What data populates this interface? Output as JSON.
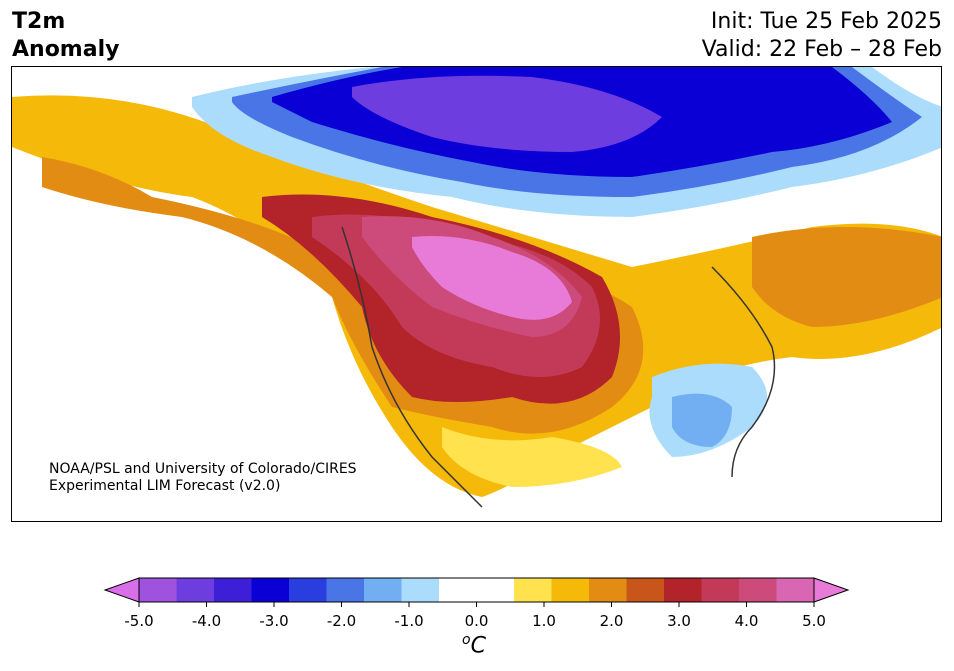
{
  "header": {
    "title_line1": "T2m",
    "title_line2": "Anomaly",
    "init": "Init: Tue 25 Feb 2025",
    "valid": "Valid: 22 Feb – 28 Feb"
  },
  "credit": {
    "line1": "NOAA/PSL and University of Colorado/CIRES",
    "line2": "Experimental LIM Forecast (v2.0)"
  },
  "colorbar": {
    "unit_sup": "o",
    "unit": "C",
    "ticks": [
      "-5.0",
      "-4.0",
      "-3.0",
      "-2.0",
      "-1.0",
      "0.0",
      "1.0",
      "2.0",
      "3.0",
      "4.0",
      "5.0"
    ],
    "colors": {
      "under": "#d86fe8",
      "over": "#e87ad8",
      "bins": [
        "#9f52de",
        "#6e3de0",
        "#3c1fd6",
        "#0a00d6",
        "#2a3ee0",
        "#4a75e6",
        "#72aef2",
        "#acdcfb",
        "#ffffff",
        "#ffffff",
        "#ffe24d",
        "#f5b90a",
        "#e38c14",
        "#c8561a",
        "#b2232a",
        "#c23a58",
        "#cc4b7a",
        "#d866b2"
      ]
    }
  }
}
